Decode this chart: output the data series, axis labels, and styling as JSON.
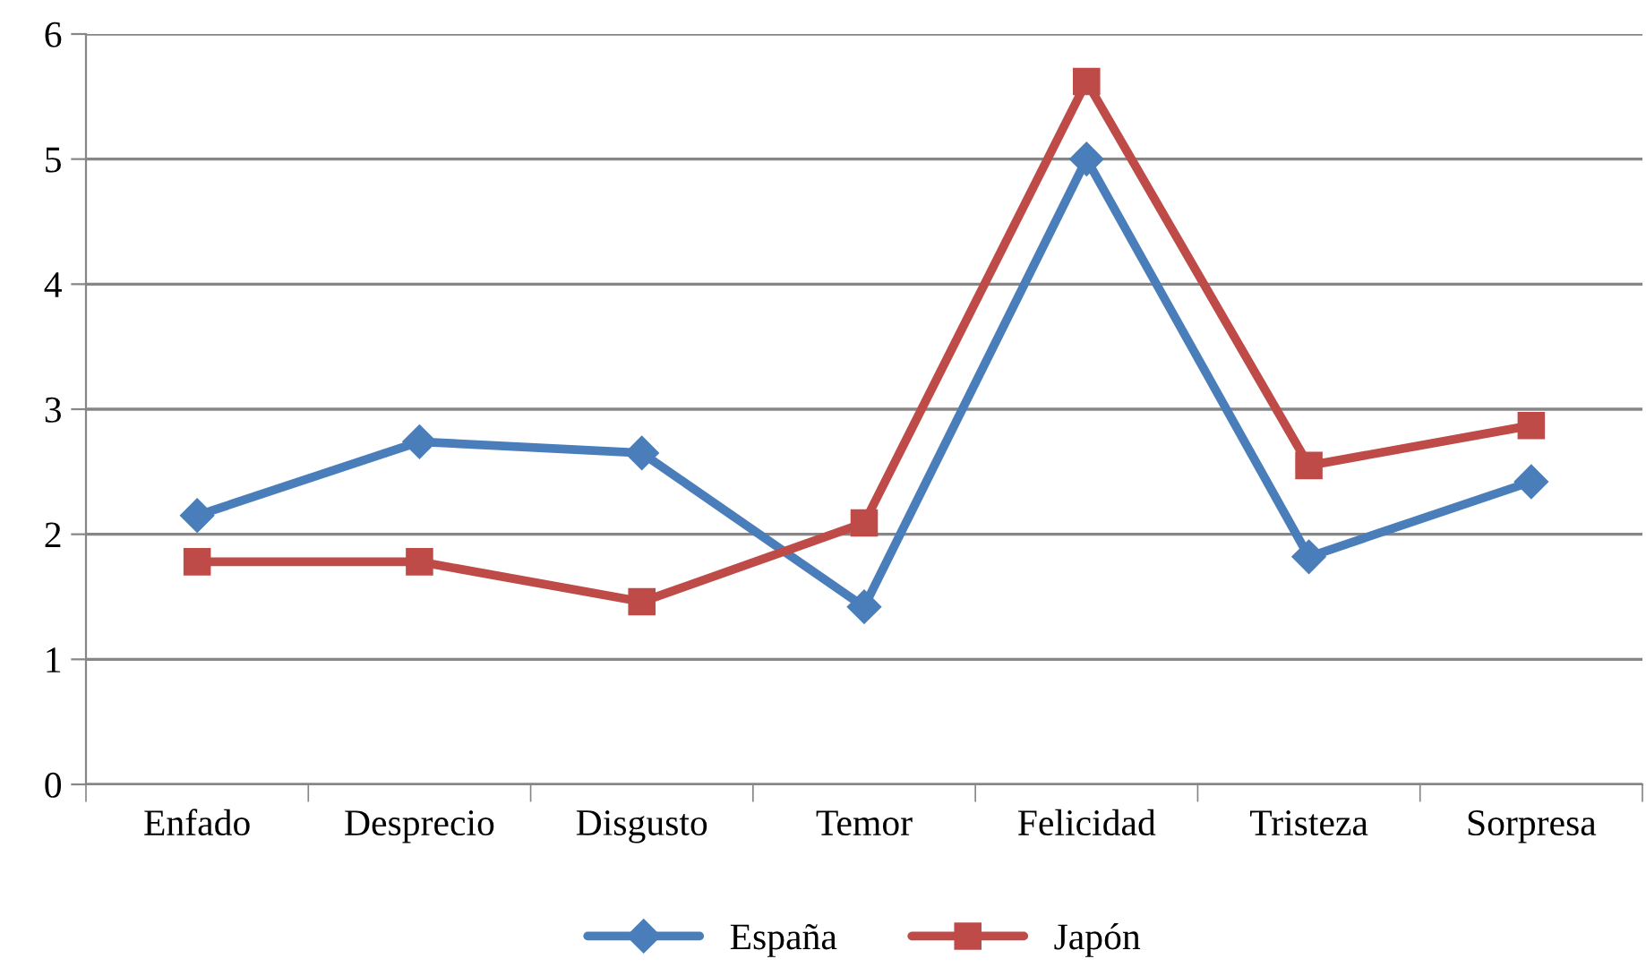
{
  "chart_data": {
    "type": "line",
    "categories": [
      "Enfado",
      "Desprecio",
      "Disgusto",
      "Temor",
      "Felicidad",
      "Tristeza",
      "Sorpresa"
    ],
    "series": [
      {
        "name": "España",
        "color": "#4a7ebb",
        "marker": "diamond",
        "values": [
          2.15,
          2.74,
          2.65,
          1.42,
          5.0,
          1.82,
          2.42
        ]
      },
      {
        "name": "Japón",
        "color": "#be4b48",
        "marker": "square",
        "values": [
          1.78,
          1.78,
          1.46,
          2.09,
          5.62,
          2.55,
          2.87
        ]
      }
    ],
    "ylim": [
      0,
      6
    ],
    "yticks": [
      0,
      1,
      2,
      3,
      4,
      5,
      6
    ],
    "grid": "y",
    "legend": "bottom",
    "line_style": "solid"
  }
}
